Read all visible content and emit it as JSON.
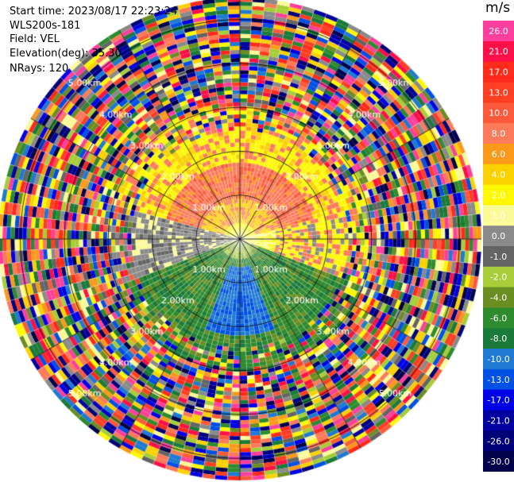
{
  "header": {
    "start_time": "Start time: 2023/08/17 22:23:24",
    "instrument": "WLS200s-181",
    "field": "Field: VEL",
    "elevation": "Elevation(deg): 35.30",
    "nrays": "NRays: 120"
  },
  "colorbar": {
    "unit": "m/s",
    "levels": [
      {
        "label": "26.0",
        "color": "#ff3f9d"
      },
      {
        "label": "21.0",
        "color": "#ff0f47"
      },
      {
        "label": "17.0",
        "color": "#ff2a1a"
      },
      {
        "label": "13.0",
        "color": "#ff3f22"
      },
      {
        "label": "10.0",
        "color": "#fd5a3c"
      },
      {
        "label": "8.0",
        "color": "#fd7a5a"
      },
      {
        "label": "6.0",
        "color": "#fb9a1a"
      },
      {
        "label": "4.0",
        "color": "#fbd200"
      },
      {
        "label": "2.0",
        "color": "#fef900"
      },
      {
        "label": "1.0",
        "color": "#fbfb9a"
      },
      {
        "label": "0.0",
        "color": "#8a8a8a"
      },
      {
        "label": "-1.0",
        "color": "#646464"
      },
      {
        "label": "-2.0",
        "color": "#a6ce39"
      },
      {
        "label": "-4.0",
        "color": "#6b8e23"
      },
      {
        "label": "-6.0",
        "color": "#2e8b2e"
      },
      {
        "label": "-8.0",
        "color": "#1a7a3a"
      },
      {
        "label": "-10.0",
        "color": "#1e7ad2"
      },
      {
        "label": "-13.0",
        "color": "#0050e6"
      },
      {
        "label": "-17.0",
        "color": "#0000e6"
      },
      {
        "label": "-21.0",
        "color": "#0000a0"
      },
      {
        "label": "-26.0",
        "color": "#000078"
      },
      {
        "label": "-30.0",
        "color": "#00004b"
      }
    ]
  },
  "chart_data": {
    "type": "heatmap",
    "field": "VEL",
    "nrays": 120,
    "elevation_deg": 35.3,
    "range_rings": [
      "1.00km",
      "2.00km",
      "3.00km",
      "4.00km",
      "5.00km"
    ],
    "ring_km": [
      1,
      2,
      3,
      4,
      5
    ],
    "max_range_km": 5.5,
    "pattern": "Coherent velocity field within ~2.5 km: positive (yellow/orange/salmon, 2 to 10 m/s) toward north and east, negative (green, -2 to -8 m/s) toward south, blue (-10 to -13 m/s) core near south; near-zero grey toward west. Beyond ~2.5 km the field is noisy with random colors across the full scale."
  }
}
